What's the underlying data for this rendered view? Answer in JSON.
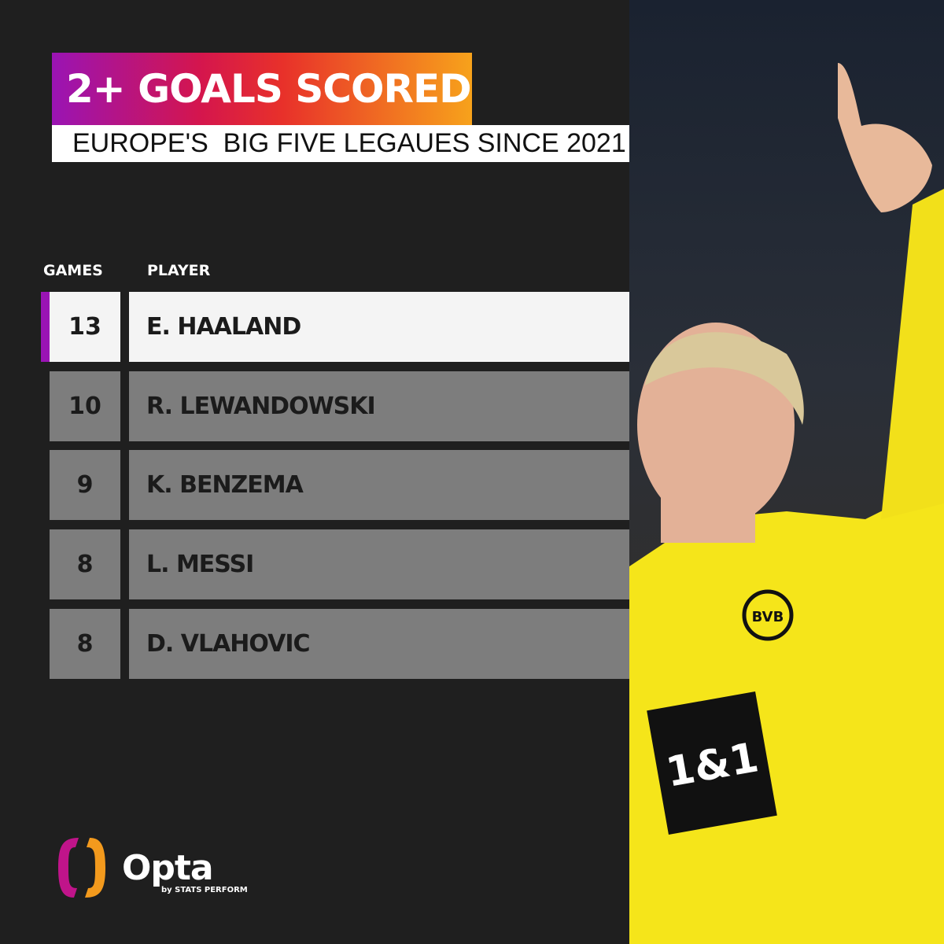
{
  "title": "2+ GOALS SCORED",
  "subtitle": "EUROPE'S  BIG FIVE LEGAUES SINCE 2021",
  "columns": {
    "games": "GAMES",
    "player": "PLAYER"
  },
  "rows": [
    {
      "games": "13",
      "player": "E. HAALAND"
    },
    {
      "games": "10",
      "player": "R. LEWANDOWSKI"
    },
    {
      "games": "9",
      "player": "K. BENZEMA"
    },
    {
      "games": "8",
      "player": "L. MESSI"
    },
    {
      "games": "8",
      "player": "D. VLAHOVIC"
    }
  ],
  "brand": {
    "name": "Opta",
    "tagline": "by STATS PERFORM"
  },
  "photo": {
    "jersey_sponsor": "1&1",
    "crest": "BVB 09"
  },
  "colors": {
    "background": "#1f1f1f",
    "highlight_accent": "#9a14b4",
    "row": "#7d7d7d",
    "jersey": "#f5e51a"
  }
}
